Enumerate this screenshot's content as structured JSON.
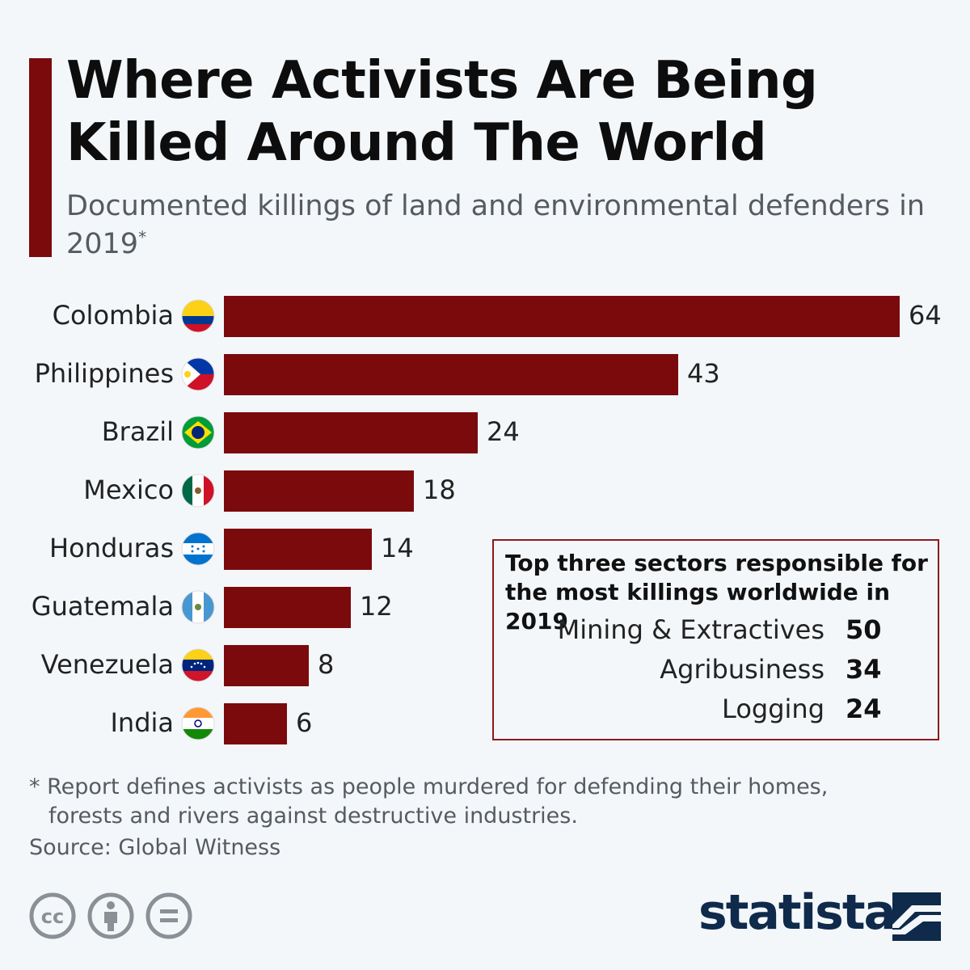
{
  "header": {
    "title_line1": "Where Activists Are Being",
    "title_line2": "Killed Around The World",
    "subtitle": "Documented killings of land and environmental defenders in 2019",
    "subtitle_mark": "*"
  },
  "chart_data": {
    "type": "bar",
    "orientation": "horizontal",
    "title": "Where Activists Are Being Killed Around The World",
    "categories": [
      "Colombia",
      "Philippines",
      "Brazil",
      "Mexico",
      "Honduras",
      "Guatemala",
      "Venezuela",
      "India"
    ],
    "values": [
      64,
      43,
      24,
      18,
      14,
      12,
      8,
      6
    ],
    "value_labels": [
      "64",
      "43",
      "24",
      "18",
      "14",
      "12",
      "8",
      "6"
    ],
    "xlim": [
      0,
      64
    ],
    "xlabel": "",
    "ylabel": "",
    "grid": false,
    "bar_color": "#7b0a0c"
  },
  "sectors": {
    "title_line1": "Top three sectors responsible for",
    "title_line2": "the most killings worldwide in 2019",
    "items": [
      {
        "label": "Mining & Extractives",
        "value": "50"
      },
      {
        "label": "Agribusiness",
        "value": "34"
      },
      {
        "label": "Logging",
        "value": "24"
      }
    ]
  },
  "footer": {
    "note_line1": "* Report defines activists as people murdered for defending their homes,",
    "note_line2": "forests and rivers against destructive industries.",
    "source": "Source: Global Witness",
    "brand": "statista"
  },
  "colors": {
    "accent": "#7b0a0c",
    "brand": "#0f2a4a",
    "muted_text": "#555b61"
  }
}
